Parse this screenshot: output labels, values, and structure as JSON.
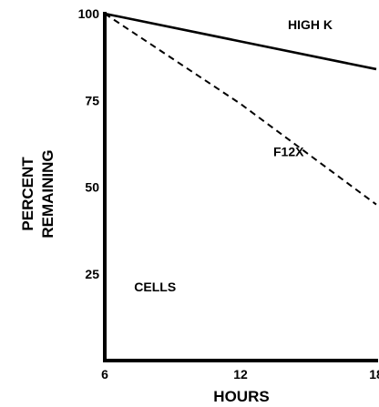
{
  "chart_data": {
    "type": "line",
    "xlabel": "HOURS",
    "ylabel_lines": [
      "PERCENT",
      "REMAINING"
    ],
    "xlim": [
      6,
      18
    ],
    "ylim": [
      0,
      100
    ],
    "x_ticks": [
      {
        "value": 6,
        "label": "6"
      },
      {
        "value": 12,
        "label": "12"
      },
      {
        "value": 18,
        "label": "18"
      }
    ],
    "y_ticks": [
      {
        "value": 100,
        "label": "100"
      },
      {
        "value": 75,
        "label": "75"
      },
      {
        "value": 50,
        "label": "50"
      },
      {
        "value": 25,
        "label": "25"
      }
    ],
    "grid": false,
    "series": [
      {
        "name": "HIGH K",
        "style": "solid",
        "x": [
          6,
          12,
          18
        ],
        "y": [
          100,
          92,
          84
        ]
      },
      {
        "name": "F12X",
        "style": "dashed",
        "x": [
          6,
          12,
          18
        ],
        "y": [
          100,
          74,
          45
        ]
      }
    ],
    "annotations": [
      {
        "text": "CELLS",
        "x": 7.3,
        "y": 20
      }
    ]
  }
}
